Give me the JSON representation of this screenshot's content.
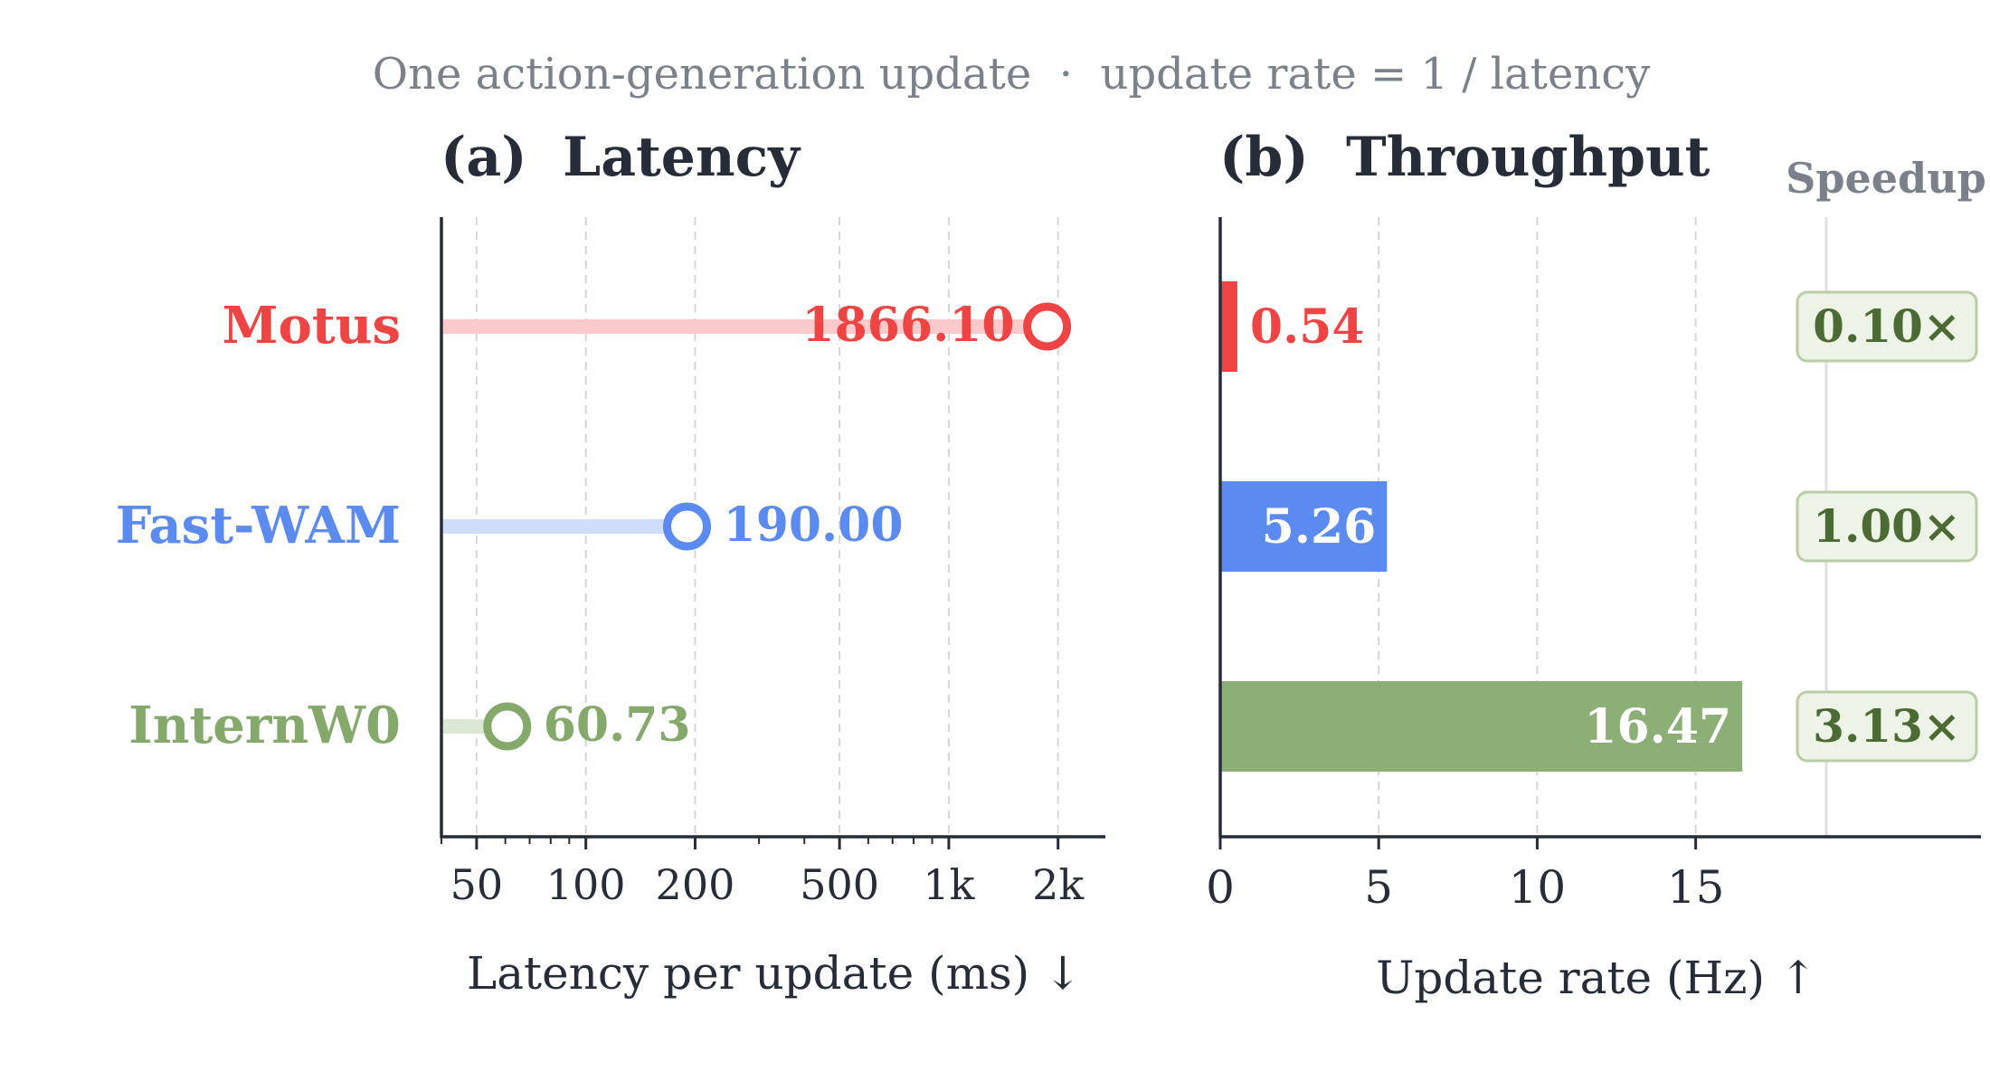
{
  "figure": {
    "subtitle": "One action-generation update  ·  update rate = 1 / latency"
  },
  "colors": {
    "axis": "#262d38",
    "muted": "#7a818b",
    "grid": "#d5d5d5",
    "speedup_text": "#4c6a33",
    "speedup_fill": "#edf3e7",
    "speedup_border": "#b9cda6"
  },
  "chart_data": [
    {
      "type": "dot",
      "panel_label": "(a)",
      "title": "Latency",
      "xlabel": "Latency per update (ms) ↓",
      "x_scale": "log",
      "xlim": [
        40,
        2700
      ],
      "xticks": [
        {
          "value": 50,
          "label": "50"
        },
        {
          "value": 100,
          "label": "100"
        },
        {
          "value": 200,
          "label": "200"
        },
        {
          "value": 500,
          "label": "500"
        },
        {
          "value": 1000,
          "label": "1k"
        },
        {
          "value": 2000,
          "label": "2k"
        }
      ],
      "categories": [
        "Motus",
        "Fast-WAM",
        "InternW0"
      ],
      "values": [
        1866.1,
        190.0,
        60.73
      ],
      "value_labels": [
        "1866.10",
        "190.00",
        "60.73"
      ],
      "colors": [
        "#ef4444",
        "#5b8af0",
        "#84a96b"
      ],
      "track_colors": [
        "#fccacb",
        "#d1def9",
        "#dce7d4"
      ],
      "grid": true
    },
    {
      "type": "bar",
      "orientation": "horizontal",
      "panel_label": "(b)",
      "title": "Throughput",
      "xlabel": "Update rate (Hz) ↑",
      "xlim": [
        0,
        24
      ],
      "xticks": [
        {
          "value": 0,
          "label": "0"
        },
        {
          "value": 5,
          "label": "5"
        },
        {
          "value": 10,
          "label": "10"
        },
        {
          "value": 15,
          "label": "15"
        }
      ],
      "categories": [
        "Motus",
        "Fast-WAM",
        "InternW0"
      ],
      "values": [
        0.54,
        5.26,
        16.47
      ],
      "value_labels": [
        "0.54",
        "5.26",
        "16.47"
      ],
      "colors": [
        "#ef4444",
        "#5b8af0",
        "#8caf76"
      ],
      "speedup_title": "Speedup",
      "speedup": [
        0.1,
        1.0,
        3.13
      ],
      "speedup_labels": [
        "0.10×",
        "1.00×",
        "3.13×"
      ],
      "grid": true
    }
  ]
}
